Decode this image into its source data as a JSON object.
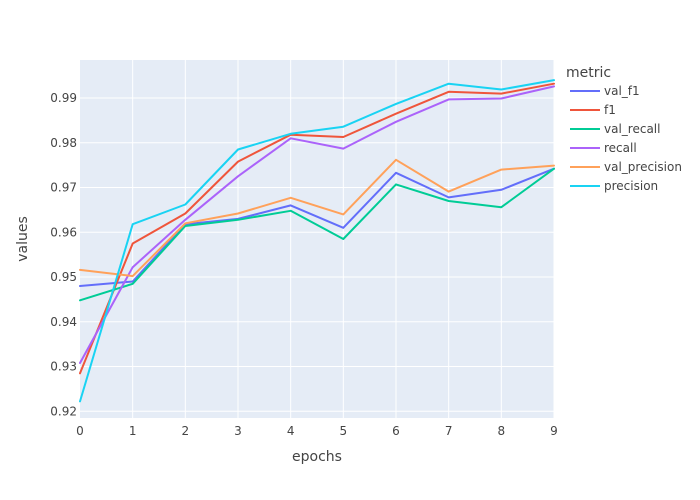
{
  "chart_data": {
    "type": "line",
    "xlabel": "epochs",
    "ylabel": "values",
    "x": [
      0,
      1,
      2,
      3,
      4,
      5,
      6,
      7,
      8,
      9
    ],
    "xlim": [
      0,
      9
    ],
    "ylim": [
      0.9185,
      0.9985
    ],
    "x_ticks": [
      "0",
      "1",
      "2",
      "3",
      "4",
      "5",
      "6",
      "7",
      "8",
      "9"
    ],
    "y_ticks": [
      0.92,
      0.93,
      0.94,
      0.95,
      0.96,
      0.97,
      0.98,
      0.99
    ],
    "y_tick_labels": [
      "0.92",
      "0.93",
      "0.94",
      "0.95",
      "0.96",
      "0.97",
      "0.98",
      "0.99"
    ],
    "grid": true,
    "legend_position": "right",
    "legend_title": "metric",
    "series": [
      {
        "name": "val_f1",
        "color": "#636efa",
        "values": [
          0.948,
          0.949,
          0.9618,
          0.963,
          0.966,
          0.961,
          0.9733,
          0.9678,
          0.9695,
          0.9742
        ]
      },
      {
        "name": "f1",
        "color": "#ef553b",
        "values": [
          0.9285,
          0.9575,
          0.9642,
          0.9758,
          0.9818,
          0.9813,
          0.9865,
          0.9914,
          0.991,
          0.9932
        ]
      },
      {
        "name": "val_recall",
        "color": "#00cc96",
        "values": [
          0.9448,
          0.9485,
          0.9614,
          0.9628,
          0.9648,
          0.9585,
          0.9707,
          0.967,
          0.9656,
          0.9742
        ]
      },
      {
        "name": "recall",
        "color": "#ab63fa",
        "values": [
          0.9308,
          0.9522,
          0.9628,
          0.9725,
          0.981,
          0.9787,
          0.9847,
          0.9897,
          0.9899,
          0.9926
        ]
      },
      {
        "name": "val_precision",
        "color": "#ffa15a",
        "values": [
          0.9516,
          0.9502,
          0.962,
          0.9642,
          0.9677,
          0.964,
          0.9762,
          0.9691,
          0.974,
          0.9749
        ]
      },
      {
        "name": "precision",
        "color": "#19d3f3",
        "values": [
          0.9222,
          0.9618,
          0.9662,
          0.9785,
          0.982,
          0.9836,
          0.9887,
          0.9932,
          0.9919,
          0.994
        ]
      }
    ]
  }
}
